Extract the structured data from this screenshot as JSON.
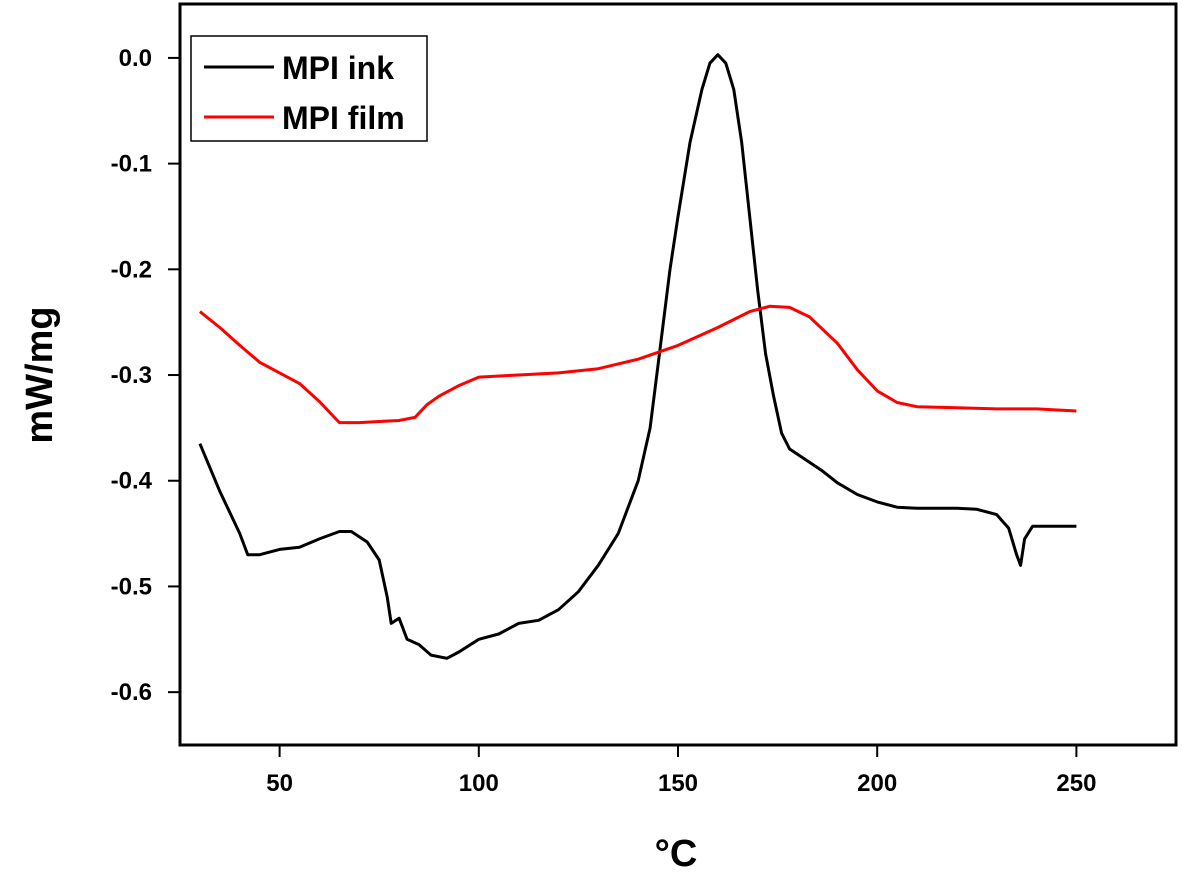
{
  "chart_data": {
    "type": "line",
    "title": "",
    "xlabel": "°C",
    "ylabel": "mW/mg",
    "xlim": [
      25,
      275
    ],
    "ylim": [
      -0.65,
      0.051
    ],
    "xticks": [
      50,
      100,
      150,
      200,
      250
    ],
    "xtick_labels": [
      "50",
      "100",
      "150",
      "200",
      "250"
    ],
    "yticks": [
      0.0,
      -0.1,
      -0.2,
      -0.3,
      -0.4,
      -0.5,
      -0.6
    ],
    "ytick_labels": [
      "0.0",
      "-0.1",
      "-0.2",
      "-0.3",
      "-0.4",
      "-0.5",
      "-0.6"
    ],
    "grid": false,
    "legend_position": "top-left",
    "series": [
      {
        "name": "MPI ink",
        "color": "#000000",
        "x": [
          30,
          35,
          40,
          42,
          45,
          50,
          55,
          60,
          65,
          68,
          72,
          75,
          77,
          78,
          80,
          82,
          85,
          88,
          92,
          95,
          100,
          105,
          110,
          115,
          120,
          125,
          130,
          135,
          140,
          143,
          145,
          148,
          150,
          153,
          156,
          158,
          160,
          162,
          164,
          166,
          168,
          170,
          172,
          174,
          176,
          178,
          182,
          186,
          190,
          195,
          200,
          205,
          210,
          220,
          225,
          230,
          233,
          235,
          236,
          237,
          239,
          245,
          250
        ],
        "y": [
          -0.365,
          -0.41,
          -0.45,
          -0.47,
          -0.47,
          -0.465,
          -0.463,
          -0.455,
          -0.448,
          -0.448,
          -0.458,
          -0.475,
          -0.51,
          -0.535,
          -0.53,
          -0.55,
          -0.555,
          -0.565,
          -0.568,
          -0.562,
          -0.55,
          -0.545,
          -0.535,
          -0.532,
          -0.522,
          -0.505,
          -0.48,
          -0.45,
          -0.4,
          -0.35,
          -0.29,
          -0.2,
          -0.15,
          -0.08,
          -0.03,
          -0.005,
          0.003,
          -0.005,
          -0.03,
          -0.08,
          -0.15,
          -0.22,
          -0.28,
          -0.32,
          -0.355,
          -0.37,
          -0.38,
          -0.39,
          -0.402,
          -0.413,
          -0.42,
          -0.425,
          -0.426,
          -0.426,
          -0.427,
          -0.432,
          -0.445,
          -0.47,
          -0.48,
          -0.455,
          -0.443,
          -0.443,
          -0.443
        ]
      },
      {
        "name": "MPI film",
        "color": "#ff0000",
        "x": [
          30,
          35,
          40,
          45,
          50,
          55,
          60,
          65,
          70,
          75,
          80,
          84,
          87,
          90,
          95,
          100,
          110,
          120,
          130,
          140,
          150,
          160,
          168,
          173,
          178,
          183,
          190,
          195,
          200,
          205,
          210,
          220,
          230,
          240,
          250
        ],
        "y": [
          -0.24,
          -0.255,
          -0.272,
          -0.288,
          -0.298,
          -0.308,
          -0.325,
          -0.345,
          -0.345,
          -0.344,
          -0.343,
          -0.34,
          -0.328,
          -0.32,
          -0.31,
          -0.302,
          -0.3,
          -0.298,
          -0.294,
          -0.285,
          -0.272,
          -0.255,
          -0.24,
          -0.235,
          -0.236,
          -0.245,
          -0.27,
          -0.295,
          -0.315,
          -0.326,
          -0.33,
          -0.331,
          -0.332,
          -0.332,
          -0.334
        ]
      }
    ]
  }
}
